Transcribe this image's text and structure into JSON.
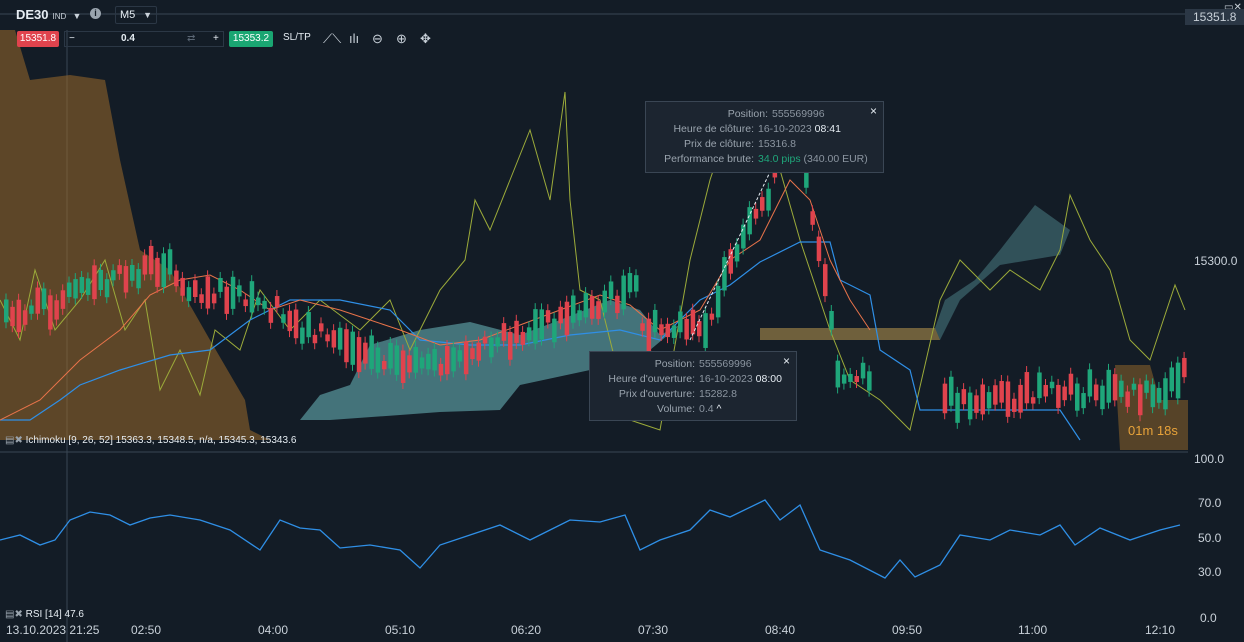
{
  "header": {
    "symbol": "DE30",
    "symbol_tag": "IND",
    "timeframe": "M5",
    "info_icon": "info-icon"
  },
  "trade_bar": {
    "sell_price": "15351.8",
    "minus_label": "−",
    "quantity": "0.4",
    "plus_label": "+",
    "buy_price": "15353.2",
    "sltp_label": "SL/TP",
    "tools": [
      "line-chart-icon",
      "candles-icon",
      "zoom-out-icon",
      "zoom-in-icon",
      "crosshair-icon"
    ]
  },
  "price_axis": {
    "last_price": "15351.8",
    "level_label": "15300.0"
  },
  "rsi_axis": [
    "100.0",
    "70.0",
    "50.0",
    "30.0",
    "0.0"
  ],
  "time_axis": [
    "13.10.2023 21:25",
    "02:50",
    "04:00",
    "05:10",
    "06:20",
    "07:30",
    "08:40",
    "09:50",
    "11:00",
    "12:10"
  ],
  "popup_close": {
    "position_label": "Position:",
    "position": "555569996",
    "close_time_label": "Heure de clôture:",
    "close_time_date": "16-10-2023",
    "close_time_hour": "08:41",
    "close_price_label": "Prix de clôture:",
    "close_price": "15316.8",
    "perf_label": "Performance brute:",
    "perf_pips": "34.0 pips",
    "perf_eur": "(340.00 EUR)",
    "close_icon": "×"
  },
  "popup_open": {
    "position_label": "Position:",
    "position": "555569996",
    "open_time_label": "Heure d'ouverture:",
    "open_time_date": "16-10-2023",
    "open_time_hour": "08:00",
    "open_price_label": "Prix d'ouverture:",
    "open_price": "15282.8",
    "volume_label": "Volume:",
    "volume": "0.4",
    "close_icon": "×"
  },
  "indicators": {
    "ichimoku": "Ichimoku [9, 26, 52] 15363.3, 15348.5, n/a, 15345.3, 15343.6",
    "rsi": "RSI [14] 47.6"
  },
  "candle_timer": {
    "minutes": "01m",
    "seconds": "18s"
  },
  "colors": {
    "background": "#131c26",
    "bull": "#1fa67a",
    "bear": "#e0434d",
    "rsi_line": "#2f8fe6",
    "kijun": "#2f8fe6",
    "tenkan": "#e8734a",
    "chikou": "#9cab3a",
    "cloud_bull": "#5fa3a8",
    "cloud_bear": "#9a6a2a"
  }
}
